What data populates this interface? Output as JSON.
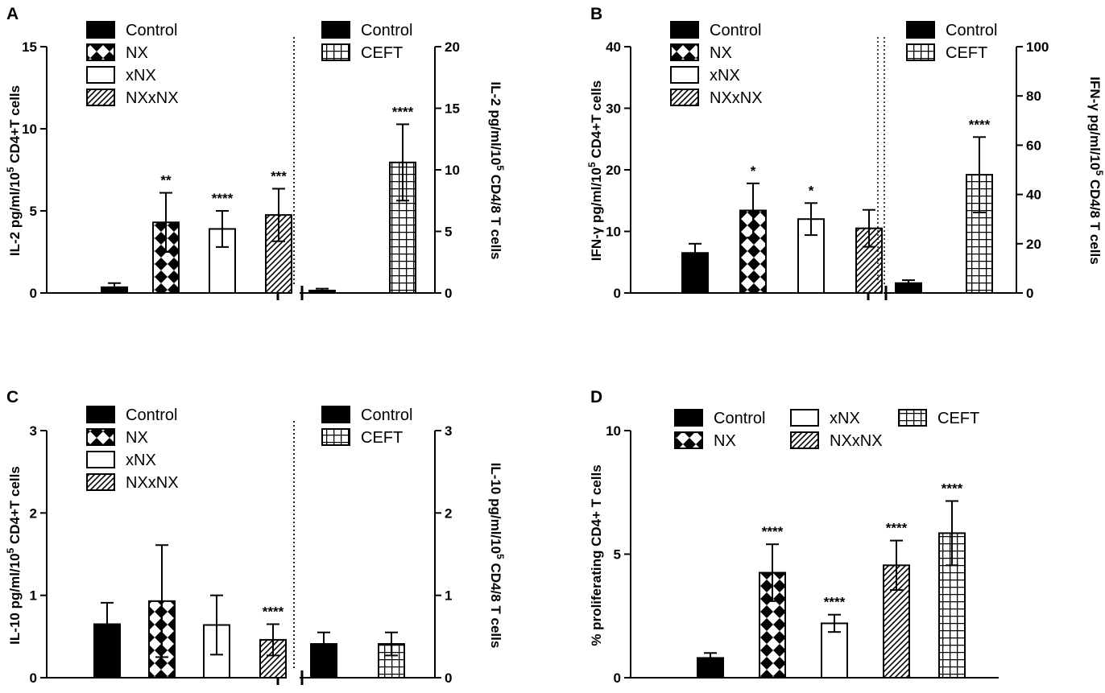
{
  "chart_data": [
    {
      "panel": "A",
      "type": "bar",
      "ylabel": "IL-2 pg/ml/10^5 CD4+T cells",
      "ylim": [
        0,
        15
      ],
      "yticks": [
        0,
        5,
        10,
        15
      ],
      "categories": [
        "Control",
        "NX",
        "xNX",
        "NXxNX"
      ],
      "patterns": [
        "solid",
        "diamond",
        "open",
        "diag"
      ],
      "values": [
        0.35,
        4.3,
        3.9,
        4.75
      ],
      "errors": [
        0.25,
        1.8,
        1.1,
        1.6
      ],
      "stars": [
        "",
        "**",
        "****",
        "***"
      ],
      "legend": [
        "Control",
        "NX",
        "xNX",
        "NXxNX"
      ]
    },
    {
      "panel": "A",
      "type": "bar",
      "ylabel": "IL-2 pg/ml/10^5 CD4/8 T cells",
      "ylim": [
        0,
        20
      ],
      "yticks": [
        0,
        5,
        10,
        15,
        20
      ],
      "categories": [
        "Control",
        "CEFT"
      ],
      "patterns": [
        "solid",
        "grid"
      ],
      "values": [
        0.2,
        10.6
      ],
      "errors": [
        0.15,
        3.1
      ],
      "stars": [
        "",
        "****"
      ],
      "legend": [
        "Control",
        "CEFT"
      ]
    },
    {
      "panel": "B",
      "type": "bar",
      "ylabel": "IFN-γ pg/ml/10^5 CD4+T cells",
      "ylim": [
        0,
        40
      ],
      "yticks": [
        0,
        10,
        20,
        30,
        40
      ],
      "categories": [
        "Control",
        "NX",
        "xNX",
        "NXxNX"
      ],
      "patterns": [
        "solid",
        "diamond",
        "open",
        "diag"
      ],
      "values": [
        6.5,
        13.4,
        12.0,
        10.5
      ],
      "errors": [
        1.5,
        4.4,
        2.6,
        3.0
      ],
      "stars": [
        "",
        "*",
        "*",
        ""
      ],
      "legend": [
        "Control",
        "NX",
        "xNX",
        "NXxNX"
      ]
    },
    {
      "panel": "B",
      "type": "bar",
      "ylabel": "IFN-γ pg/ml/10^5 CD4/8 T cells",
      "ylim": [
        0,
        100
      ],
      "yticks": [
        0,
        20,
        40,
        60,
        80,
        100
      ],
      "categories": [
        "Control",
        "CEFT"
      ],
      "patterns": [
        "solid",
        "grid"
      ],
      "values": [
        4.0,
        48.0
      ],
      "errors": [
        1.2,
        15.3
      ],
      "stars": [
        "",
        "****"
      ],
      "legend": [
        "Control",
        "CEFT"
      ]
    },
    {
      "panel": "C",
      "type": "bar",
      "ylabel": "IL-10 pg/ml/10^5 CD4+T cells",
      "ylim": [
        0,
        3
      ],
      "yticks": [
        0,
        1,
        2,
        3
      ],
      "categories": [
        "Control",
        "NX",
        "xNX",
        "NXxNX"
      ],
      "patterns": [
        "solid",
        "diamond",
        "open",
        "diag"
      ],
      "values": [
        0.65,
        0.93,
        0.64,
        0.46
      ],
      "errors": [
        0.26,
        0.68,
        0.36,
        0.19
      ],
      "stars": [
        "",
        "",
        "",
        "****"
      ],
      "legend": [
        "Control",
        "NX",
        "xNX",
        "NXxNX"
      ]
    },
    {
      "panel": "C",
      "type": "bar",
      "ylabel": "IL-10 pg/ml/10^5 CD4/8 T cells",
      "ylim": [
        0,
        3
      ],
      "yticks": [
        0,
        1,
        2,
        3
      ],
      "categories": [
        "Control",
        "CEFT"
      ],
      "patterns": [
        "solid",
        "grid"
      ],
      "values": [
        0.41,
        0.41
      ],
      "errors": [
        0.14,
        0.14
      ],
      "stars": [
        "",
        ""
      ],
      "legend": [
        "Control",
        "CEFT"
      ]
    },
    {
      "panel": "D",
      "type": "bar",
      "ylabel": "% proliferating CD4+ T cells",
      "ylim": [
        0,
        10
      ],
      "yticks": [
        0,
        5,
        10
      ],
      "categories": [
        "Control",
        "NX",
        "xNX",
        "NXxNX",
        "CEFT"
      ],
      "patterns": [
        "solid",
        "diamond",
        "open",
        "diag",
        "grid"
      ],
      "values": [
        0.8,
        4.25,
        2.2,
        4.55,
        5.85
      ],
      "errors": [
        0.2,
        1.15,
        0.35,
        1.0,
        1.3
      ],
      "stars": [
        "",
        "****",
        "****",
        "****",
        "****"
      ],
      "legend": [
        "Control",
        "NX",
        "xNX",
        "NXxNX",
        "CEFT"
      ]
    }
  ],
  "panel_letters": [
    "A",
    "B",
    "C",
    "D"
  ],
  "colors": {
    "ink": "#000000",
    "fill_open": "#ffffff"
  }
}
